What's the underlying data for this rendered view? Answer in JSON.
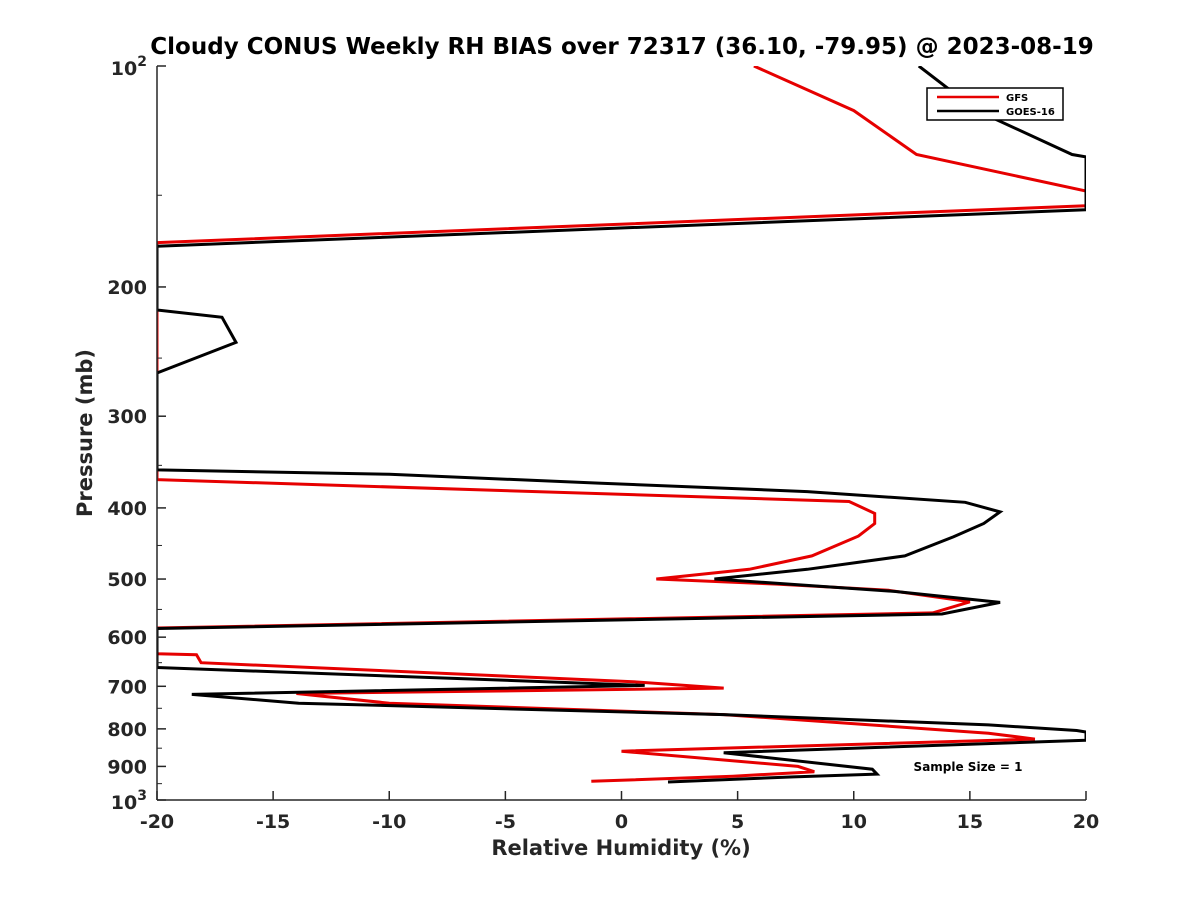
{
  "chart_data": {
    "type": "line",
    "title": "Cloudy CONUS Weekly RH BIAS over 72317 (36.10, -79.95) @ 2023-08-19",
    "xlabel": "Relative Humidity (%)",
    "ylabel": "Pressure (mb)",
    "xlim": [
      -20,
      20
    ],
    "ylim": [
      100,
      1000
    ],
    "yscale": "log",
    "y_reversed": true,
    "grid": false,
    "legend_position": "top-right",
    "x_ticks": [
      "-20",
      "-15",
      "-10",
      "-5",
      "0",
      "5",
      "10",
      "15",
      "20"
    ],
    "y_ticks": [
      "200",
      "300",
      "400",
      "500",
      "600",
      "700",
      "800",
      "900"
    ],
    "y_tick_values": [
      200,
      300,
      400,
      500,
      600,
      700,
      800,
      900
    ],
    "y_exp_labels": {
      "top": {
        "base": "10",
        "exp": "2"
      },
      "bottom": {
        "base": "10",
        "exp": "3"
      }
    },
    "annotation": "Sample Size = 1",
    "series": [
      {
        "name": "GFS",
        "color": "#e60000",
        "points": [
          [
            5.7,
            100
          ],
          [
            10,
            115
          ],
          [
            12.7,
            132
          ],
          [
            20,
            148
          ],
          [
            20,
            155
          ],
          [
            -20,
            174
          ],
          [
            -20,
            366
          ],
          [
            9.8,
            392
          ],
          [
            10.9,
            407
          ],
          [
            10.9,
            420
          ],
          [
            10.2,
            437
          ],
          [
            8.2,
            465
          ],
          [
            5.5,
            485
          ],
          [
            1.5,
            500
          ],
          [
            6.7,
            508
          ],
          [
            11.5,
            518
          ],
          [
            15,
            537
          ],
          [
            13.4,
            556
          ],
          [
            -20,
            583
          ],
          [
            -20,
            632
          ],
          [
            -18.3,
            634
          ],
          [
            -18.1,
            650
          ],
          [
            0.5,
            690
          ],
          [
            4.4,
            704
          ],
          [
            -14.0,
            716
          ],
          [
            -10,
            738
          ],
          [
            4.4,
            765
          ],
          [
            15.8,
            811
          ],
          [
            17.8,
            826
          ],
          [
            0,
            858
          ],
          [
            7.6,
            900
          ],
          [
            8.3,
            915
          ],
          [
            4.8,
            928
          ],
          [
            -1.3,
            943
          ]
        ]
      },
      {
        "name": "GOES-16",
        "color": "#000000",
        "points": [
          [
            12.8,
            100
          ],
          [
            15.3,
            115
          ],
          [
            19.4,
            132
          ],
          [
            20,
            133
          ],
          [
            20,
            157
          ],
          [
            -20,
            176
          ],
          [
            -20,
            215
          ],
          [
            -17.2,
            220
          ],
          [
            -16.6,
            238
          ],
          [
            -20,
            262
          ],
          [
            -20,
            355
          ],
          [
            -10,
            360
          ],
          [
            -1,
            370
          ],
          [
            8,
            380
          ],
          [
            14.8,
            393
          ],
          [
            16.3,
            405
          ],
          [
            15.6,
            420
          ],
          [
            14.3,
            438
          ],
          [
            12.2,
            465
          ],
          [
            8,
            485
          ],
          [
            4.0,
            500
          ],
          [
            11.8,
            520
          ],
          [
            16.3,
            538
          ],
          [
            13.8,
            558
          ],
          [
            -20,
            584
          ],
          [
            -20,
            660
          ],
          [
            1.0,
            698
          ],
          [
            -18.5,
            718
          ],
          [
            -13.9,
            738
          ],
          [
            4.4,
            765
          ],
          [
            15.8,
            790
          ],
          [
            19.6,
            804
          ],
          [
            20,
            808
          ],
          [
            20,
            829
          ],
          [
            4.4,
            862
          ],
          [
            10.8,
            908
          ],
          [
            11.0,
            922
          ],
          [
            7.4,
            930
          ],
          [
            2.0,
            945
          ]
        ]
      }
    ]
  }
}
